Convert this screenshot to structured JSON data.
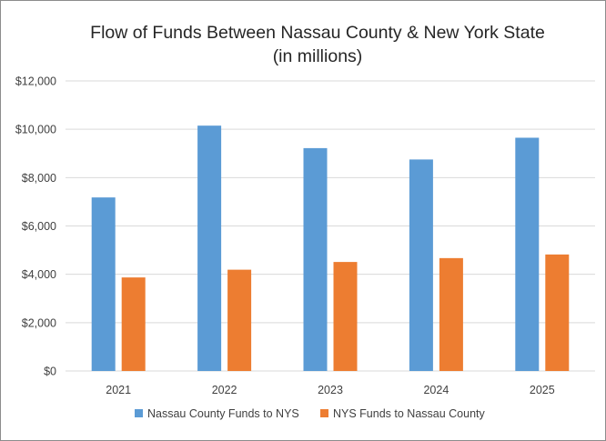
{
  "chart_data": {
    "type": "bar",
    "title": "Flow of Funds Between Nassau County & New York State",
    "subtitle": "(in millions)",
    "categories": [
      "2021",
      "2022",
      "2023",
      "2024",
      "2025"
    ],
    "series": [
      {
        "name": "Nassau County Funds to NYS",
        "values": [
          7180,
          10150,
          9220,
          8750,
          9650
        ],
        "color": "#5b9bd5"
      },
      {
        "name": "NYS Funds to Nassau County",
        "values": [
          3870,
          4190,
          4510,
          4670,
          4820
        ],
        "color": "#ed7d31"
      }
    ],
    "y_ticks": [
      "$0",
      "$2,000",
      "$4,000",
      "$6,000",
      "$8,000",
      "$10,000",
      "$12,000"
    ],
    "ylim": [
      0,
      12000
    ],
    "y_tick_step": 2000,
    "grid": true,
    "legend_position": "bottom",
    "gridline_color": "#d9d9d9"
  }
}
